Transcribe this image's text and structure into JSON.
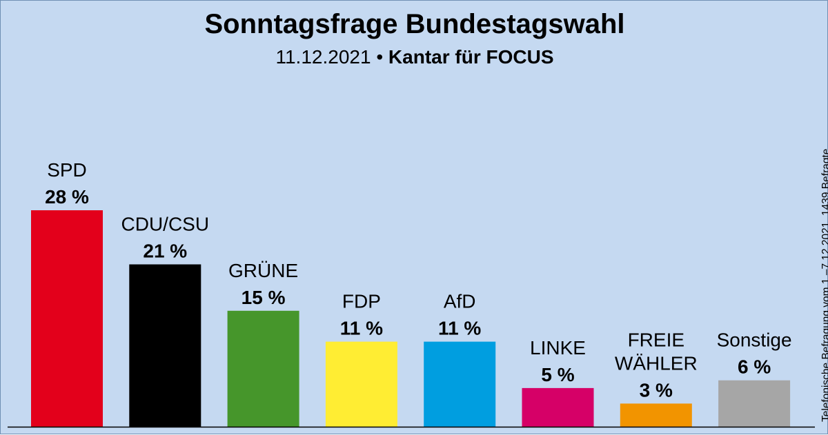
{
  "header": {
    "title": "Sonntagsfrage Bundestagswahl",
    "date": "11.12.2021",
    "separator": "•",
    "source": "Kantar für FOCUS"
  },
  "note": "Telefonische Befragung vom 1.–7.12.2021, 1439 Befragte",
  "colors": {
    "background": "#c5d9f1",
    "baseline": "#000000"
  },
  "chart_data": {
    "type": "bar",
    "title": "Sonntagsfrage Bundestagswahl",
    "subtitle": "11.12.2021 • Kantar für FOCUS",
    "categories": [
      "SPD",
      "CDU/CSU",
      "GRÜNE",
      "FDP",
      "AfD",
      "LINKE",
      "FREIE WÄHLER",
      "Sonstige"
    ],
    "category_label_lines": [
      [
        "SPD"
      ],
      [
        "CDU/CSU"
      ],
      [
        "GRÜNE"
      ],
      [
        "FDP"
      ],
      [
        "AfD"
      ],
      [
        "LINKE"
      ],
      [
        "FREIE",
        "WÄHLER"
      ],
      [
        "Sonstige"
      ]
    ],
    "values": [
      28,
      21,
      15,
      11,
      11,
      5,
      3,
      6
    ],
    "value_labels": [
      "28 %",
      "21 %",
      "15 %",
      "11 %",
      "11 %",
      "5 %",
      "3 %",
      "6 %"
    ],
    "colors": [
      "#e3001b",
      "#000000",
      "#46962b",
      "#ffed33",
      "#009ee0",
      "#d60067",
      "#f29400",
      "#a6a6a6"
    ],
    "unit": "%",
    "ylim": [
      0,
      28
    ],
    "grid": false,
    "legend": "none",
    "xlabel": "",
    "ylabel": ""
  }
}
